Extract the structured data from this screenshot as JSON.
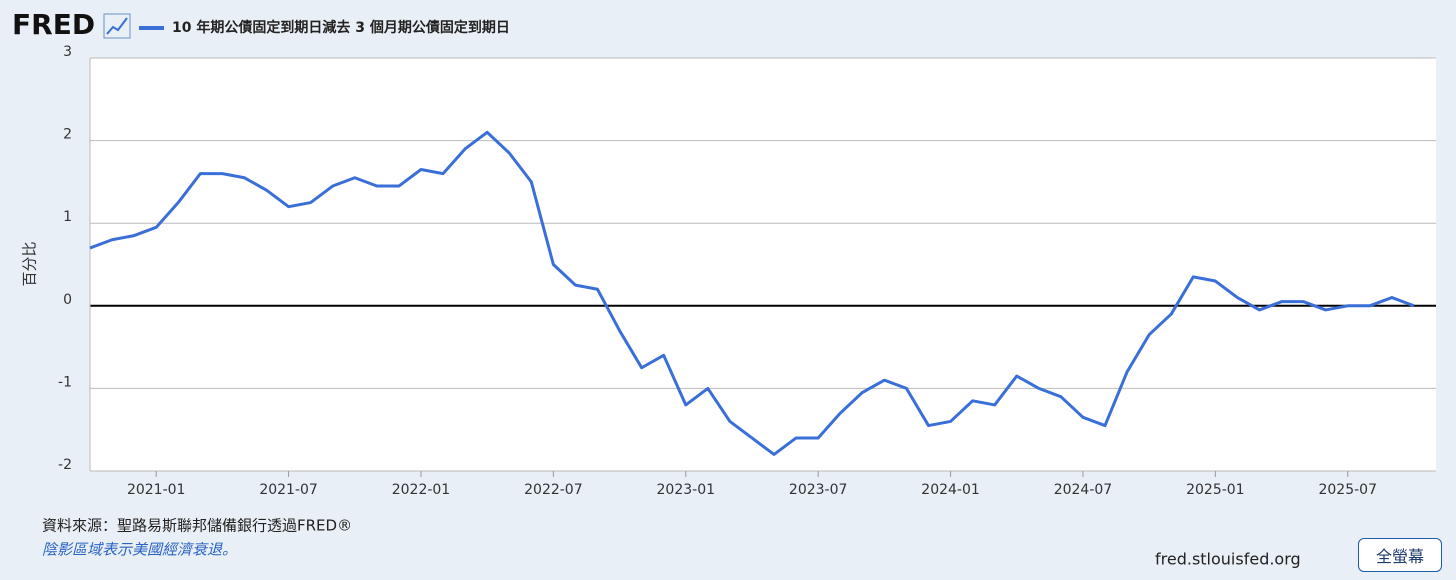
{
  "logo": "FRED",
  "site": "fred.stlouisfed.org",
  "button": "全螢幕",
  "chart_data": {
    "type": "line",
    "y_label": "百分比",
    "source": "資料來源：聖路易斯聯邦儲備銀行透過FRED®",
    "note": "陰影區域表示美國經濟衰退。",
    "x": [
      "2020-10",
      "2020-11",
      "2020-12",
      "2021-01",
      "2021-02",
      "2021-03",
      "2021-04",
      "2021-05",
      "2021-06",
      "2021-07",
      "2021-08",
      "2021-09",
      "2021-10",
      "2021-11",
      "2021-12",
      "2022-01",
      "2022-02",
      "2022-03",
      "2022-04",
      "2022-05",
      "2022-06",
      "2022-07",
      "2022-08",
      "2022-09",
      "2022-10",
      "2022-11",
      "2022-12",
      "2023-01",
      "2023-02",
      "2023-03",
      "2023-04",
      "2023-05",
      "2023-06",
      "2023-07",
      "2023-08",
      "2023-09",
      "2023-10",
      "2023-11",
      "2023-12",
      "2024-01",
      "2024-02",
      "2024-03",
      "2024-04",
      "2024-05",
      "2024-06",
      "2024-07",
      "2024-08",
      "2024-09",
      "2024-10",
      "2024-11",
      "2024-12",
      "2025-01",
      "2025-02",
      "2025-03",
      "2025-04",
      "2025-05",
      "2025-06",
      "2025-07",
      "2025-08",
      "2025-09",
      "2025-10"
    ],
    "series": [
      {
        "name": "10 年期公債固定到期日減去 3 個月期公債固定到期日",
        "color": "#3a6fd8",
        "values": [
          0.7,
          0.8,
          0.85,
          0.95,
          1.25,
          1.6,
          1.6,
          1.55,
          1.4,
          1.2,
          1.25,
          1.45,
          1.55,
          1.45,
          1.45,
          1.65,
          1.6,
          1.9,
          2.1,
          1.85,
          1.5,
          0.5,
          0.25,
          0.2,
          -0.3,
          -0.75,
          -0.6,
          -1.2,
          -1.0,
          -1.4,
          -1.6,
          -1.8,
          -1.6,
          -1.6,
          -1.3,
          -1.05,
          -0.9,
          -1.0,
          -1.45,
          -1.4,
          -1.15,
          -1.2,
          -0.85,
          -1.0,
          -1.1,
          -1.35,
          -1.45,
          -0.8,
          -0.35,
          -0.1,
          0.35,
          0.3,
          0.1,
          -0.05,
          0.05,
          0.05,
          -0.05,
          0.0,
          0.0,
          0.1,
          0.0
        ]
      }
    ],
    "xlim": [
      "2020-10",
      "2025-11"
    ],
    "xticks": [
      "2021-01",
      "2021-07",
      "2022-01",
      "2022-07",
      "2023-01",
      "2023-07",
      "2024-01",
      "2024-07",
      "2025-01",
      "2025-07"
    ],
    "ylim": [
      -2,
      3
    ],
    "yticks": [
      -2,
      -1,
      0,
      1,
      2,
      3
    ],
    "grid": true
  }
}
